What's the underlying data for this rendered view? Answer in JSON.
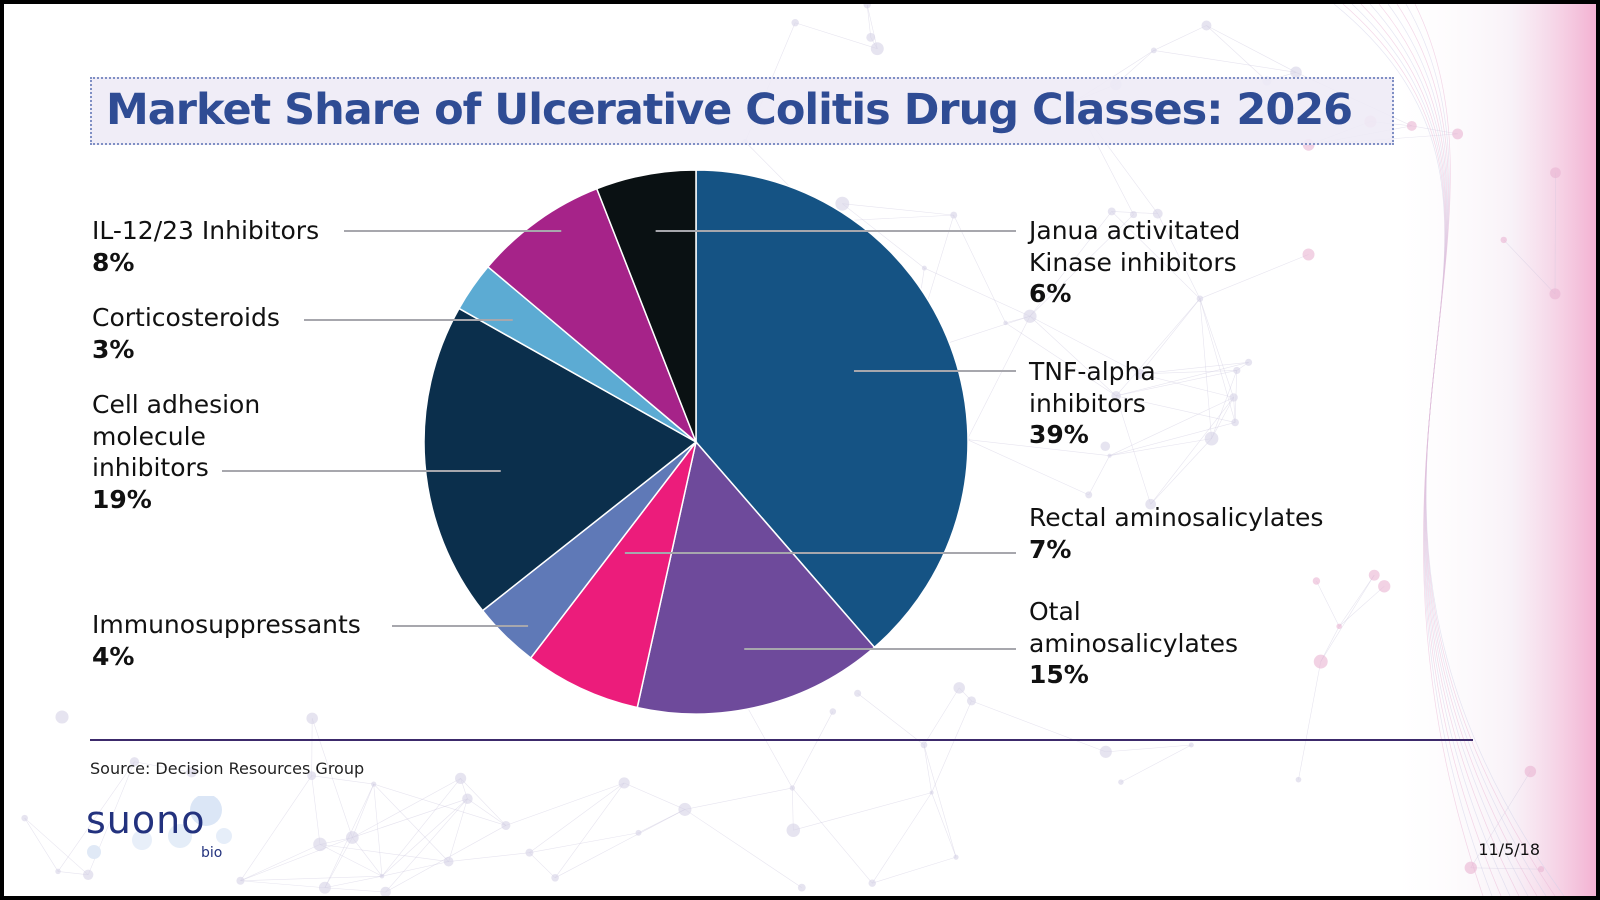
{
  "slide": {
    "title": "Market Share of Ulcerative Colitis Drug Classes: 2026",
    "source": "Source: Decision Resources Group",
    "date": "11/5/18",
    "logo": {
      "name": "suono",
      "sub": "bio",
      "color": "#23327e"
    }
  },
  "chart_data": {
    "type": "pie",
    "title": "Market Share of Ulcerative Colitis Drug Classes: 2026",
    "start": "12 o'clock",
    "direction": "clockwise",
    "slices": [
      {
        "label": "TNF-alpha inhibitors",
        "value": 39,
        "value_label": "39%",
        "color": "#155384"
      },
      {
        "label": "Otal aminosalicylates",
        "value": 15,
        "value_label": "15%",
        "color": "#6e4a9b"
      },
      {
        "label": "Rectal aminosalicylates",
        "value": 7,
        "value_label": "7%",
        "color": "#ec1c7b"
      },
      {
        "label": "Immunosuppressants",
        "value": 4,
        "value_label": "4%",
        "color": "#5f79b7"
      },
      {
        "label": "Cell adhesion molecule inhibitors",
        "value": 19,
        "value_label": "19%",
        "color": "#0b2f4c"
      },
      {
        "label": "Corticosteroids",
        "value": 3,
        "value_label": "3%",
        "color": "#5cabd3"
      },
      {
        "label": "IL-12/23 Inhibitors",
        "value": 8,
        "value_label": "8%",
        "color": "#a62389"
      },
      {
        "label": "Janua activitated Kinase inhibitors",
        "value": 6,
        "value_label": "6%",
        "color": "#0a1113"
      }
    ]
  },
  "labels": {
    "il1223": {
      "name": "IL-12/23 Inhibitors",
      "pct": "8%"
    },
    "cortico": {
      "name": "Corticosteroids",
      "pct": "3%"
    },
    "cellad": {
      "name_lines": [
        "Cell adhesion",
        "molecule",
        "inhibitors"
      ],
      "pct": "19%"
    },
    "immuno": {
      "name": "Immunosuppressants",
      "pct": "4%"
    },
    "jak": {
      "name_lines": [
        "Janua activitated",
        "Kinase inhibitors"
      ],
      "pct": "6%"
    },
    "tnf": {
      "name_lines": [
        "TNF-alpha",
        "inhibitors"
      ],
      "pct": "39%"
    },
    "rectal": {
      "name": "Rectal aminosalicylates",
      "pct": "7%"
    },
    "oral": {
      "name_lines": [
        "Otal",
        "aminosalicylates"
      ],
      "pct": "15%"
    }
  }
}
